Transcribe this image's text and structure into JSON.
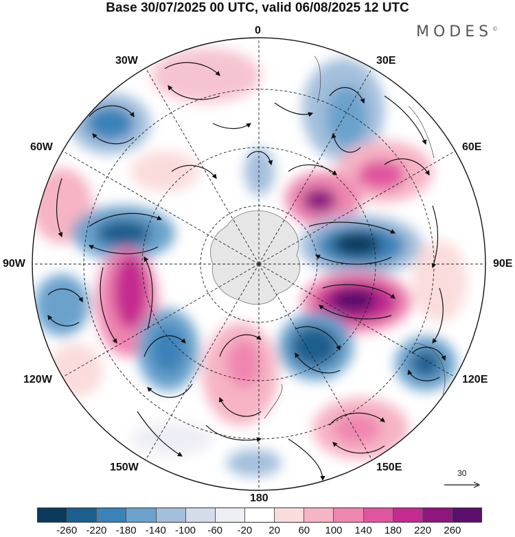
{
  "title": "Base 30/07/2025 00 UTC, valid 06/08/2025 12 UTC",
  "brand": "MODES",
  "brand_mark": "©",
  "longitude_labels": {
    "lon_0": "0",
    "lon_30e": "30E",
    "lon_60e": "60E",
    "lon_90e": "90E",
    "lon_120e": "120E",
    "lon_150e": "150E",
    "lon_180": "180",
    "lon_150w": "150W",
    "lon_120w": "120W",
    "lon_90w": "90W",
    "lon_60w": "60W",
    "lon_30w": "30W"
  },
  "reference_vector": {
    "value": "30"
  },
  "colorbar": {
    "colors": [
      "#0c3a5c",
      "#1a5f8e",
      "#3a82b8",
      "#6aa2cc",
      "#a3bfdc",
      "#d4dcec",
      "#eeeef5",
      "#ffffff",
      "#fbdcdc",
      "#f6b4c4",
      "#ef86b0",
      "#e0559f",
      "#c42a8f",
      "#90157e",
      "#5b0f6e"
    ],
    "ticks": [
      "-260",
      "-220",
      "-180",
      "-140",
      "-100",
      "-60",
      "-20",
      "20",
      "60",
      "100",
      "140",
      "180",
      "220",
      "260"
    ]
  }
}
